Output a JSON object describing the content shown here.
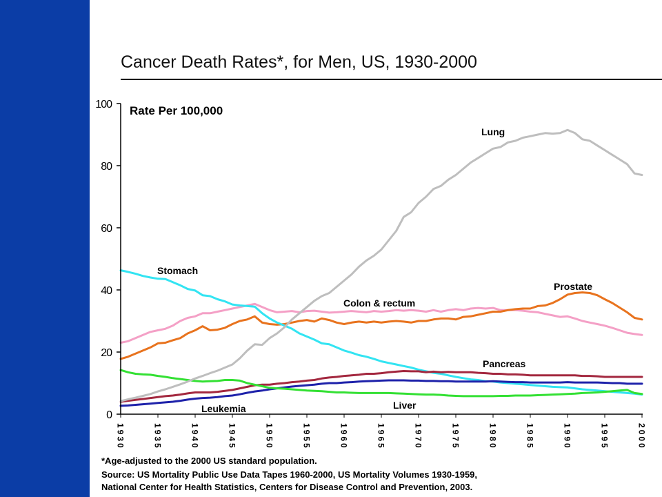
{
  "footnote": "*Age-adjusted to the 2000 US standard population.",
  "source": [
    "Source: US Mortality Public Use Data Tapes 1960-2000, US Mortality Volumes 1930-1959,",
    "National Center for Health Statistics, Centers for Disease Control and Prevention, 2003."
  ],
  "chart_data": {
    "type": "line",
    "title": "Cancer Death Rates*, for Men, US, 1930-2000",
    "xlabel": "",
    "ylabel": "Rate Per 100,000",
    "xlim": [
      1930,
      2000
    ],
    "ylim": [
      0,
      100
    ],
    "x_ticks": [
      1930,
      1935,
      1940,
      1945,
      1950,
      1955,
      1960,
      1965,
      1970,
      1975,
      1980,
      1985,
      1990,
      1995,
      2000
    ],
    "y_ticks": [
      0,
      20,
      40,
      60,
      80,
      100
    ],
    "grid": false,
    "legend": "none",
    "x": [
      1930,
      1931,
      1932,
      1933,
      1934,
      1935,
      1936,
      1937,
      1938,
      1939,
      1940,
      1941,
      1942,
      1943,
      1944,
      1945,
      1946,
      1947,
      1948,
      1949,
      1950,
      1951,
      1952,
      1953,
      1954,
      1955,
      1956,
      1957,
      1958,
      1959,
      1960,
      1961,
      1962,
      1963,
      1964,
      1965,
      1966,
      1967,
      1968,
      1969,
      1970,
      1971,
      1972,
      1973,
      1974,
      1975,
      1976,
      1977,
      1978,
      1979,
      1980,
      1981,
      1982,
      1983,
      1984,
      1985,
      1986,
      1987,
      1988,
      1989,
      1990,
      1991,
      1992,
      1993,
      1994,
      1995,
      1996,
      1997,
      1998,
      1999,
      2000
    ],
    "series": [
      {
        "name": "Colon & rectum",
        "color": "#F4A0C6",
        "values": [
          23.0,
          23.5,
          24.5,
          25.5,
          26.5,
          27.0,
          27.5,
          28.5,
          30.0,
          31.0,
          31.5,
          32.5,
          32.5,
          33.0,
          33.5,
          34.0,
          34.5,
          35.0,
          35.5,
          34.5,
          33.5,
          32.8,
          33.0,
          33.2,
          32.8,
          33.2,
          33.3,
          33.0,
          32.7,
          32.8,
          33.0,
          33.2,
          33.0,
          32.8,
          33.2,
          33.0,
          33.2,
          33.5,
          33.3,
          33.5,
          33.3,
          33.0,
          33.5,
          33.0,
          33.5,
          33.8,
          33.5,
          34.0,
          34.2,
          34.0,
          34.2,
          33.5,
          33.5,
          33.5,
          33.3,
          33.0,
          32.8,
          32.3,
          31.8,
          31.3,
          31.5,
          30.8,
          30.0,
          29.5,
          29.0,
          28.5,
          27.8,
          27.0,
          26.2,
          25.8,
          25.5
        ]
      },
      {
        "name": "Prostate",
        "color": "#E8731E",
        "values": [
          17.8,
          18.5,
          19.5,
          20.5,
          21.5,
          22.8,
          23.0,
          23.8,
          24.5,
          26.0,
          27.0,
          28.3,
          27.0,
          27.2,
          27.8,
          29.0,
          30.0,
          30.5,
          31.5,
          29.5,
          29.0,
          28.8,
          29.0,
          29.5,
          30.0,
          30.3,
          29.8,
          30.8,
          30.3,
          29.5,
          29.0,
          29.5,
          29.8,
          29.5,
          29.8,
          29.5,
          29.8,
          30.0,
          29.8,
          29.5,
          30.0,
          30.0,
          30.5,
          30.8,
          30.8,
          30.5,
          31.3,
          31.5,
          32.0,
          32.5,
          33.0,
          33.0,
          33.5,
          33.8,
          34.0,
          34.0,
          34.8,
          35.0,
          35.8,
          37.0,
          38.5,
          39.0,
          39.2,
          39.0,
          38.3,
          37.0,
          35.8,
          34.3,
          32.8,
          31.0,
          30.5
        ]
      },
      {
        "name": "Stomach",
        "color": "#33E4F2",
        "values": [
          46.3,
          45.8,
          45.2,
          44.5,
          44.0,
          43.6,
          43.5,
          42.5,
          41.5,
          40.3,
          39.8,
          38.3,
          38.0,
          37.0,
          36.3,
          35.3,
          35.0,
          34.8,
          34.6,
          32.5,
          30.8,
          29.5,
          28.5,
          27.5,
          26.0,
          25.0,
          24.0,
          22.8,
          22.5,
          21.5,
          20.5,
          19.8,
          19.0,
          18.5,
          17.8,
          17.0,
          16.5,
          16.0,
          15.5,
          15.0,
          14.3,
          13.8,
          13.3,
          13.0,
          12.5,
          12.0,
          11.6,
          11.2,
          11.0,
          10.6,
          10.5,
          10.2,
          10.0,
          9.8,
          9.6,
          9.4,
          9.2,
          9.0,
          8.8,
          8.7,
          8.6,
          8.3,
          8.0,
          7.8,
          7.6,
          7.4,
          7.2,
          7.0,
          6.8,
          6.6,
          6.3
        ]
      },
      {
        "name": "Pancreas",
        "color": "#A3283F",
        "values": [
          4.0,
          4.3,
          4.6,
          4.9,
          5.2,
          5.5,
          5.8,
          6.0,
          6.3,
          6.7,
          7.0,
          7.0,
          7.0,
          7.2,
          7.5,
          7.8,
          8.3,
          8.8,
          9.3,
          9.5,
          9.5,
          9.8,
          10.0,
          10.3,
          10.5,
          10.8,
          11.0,
          11.5,
          11.8,
          12.0,
          12.3,
          12.5,
          12.7,
          13.0,
          13.0,
          13.2,
          13.5,
          13.7,
          13.9,
          13.8,
          13.8,
          13.5,
          13.7,
          13.5,
          13.6,
          13.5,
          13.5,
          13.5,
          13.3,
          13.2,
          13.0,
          13.0,
          12.8,
          12.8,
          12.7,
          12.5,
          12.5,
          12.5,
          12.5,
          12.5,
          12.5,
          12.5,
          12.3,
          12.3,
          12.2,
          12.0,
          12.0,
          12.0,
          12.0,
          12.0,
          12.0
        ]
      },
      {
        "name": "Leukemia",
        "color": "#1E22AA",
        "values": [
          2.7,
          2.8,
          3.0,
          3.2,
          3.4,
          3.6,
          3.8,
          4.0,
          4.3,
          4.7,
          5.0,
          5.2,
          5.3,
          5.5,
          5.8,
          6.0,
          6.4,
          6.9,
          7.3,
          7.6,
          8.0,
          8.3,
          8.6,
          8.9,
          9.1,
          9.3,
          9.5,
          9.8,
          10.0,
          10.0,
          10.2,
          10.3,
          10.5,
          10.6,
          10.7,
          10.8,
          10.9,
          10.9,
          10.9,
          10.8,
          10.8,
          10.7,
          10.7,
          10.6,
          10.6,
          10.5,
          10.5,
          10.5,
          10.5,
          10.5,
          10.6,
          10.5,
          10.4,
          10.3,
          10.3,
          10.2,
          10.2,
          10.2,
          10.2,
          10.2,
          10.3,
          10.2,
          10.2,
          10.2,
          10.2,
          10.1,
          10.0,
          10.0,
          9.8,
          9.8,
          9.8
        ]
      },
      {
        "name": "Liver",
        "color": "#33E033",
        "values": [
          14.2,
          13.5,
          13.0,
          12.8,
          12.7,
          12.3,
          12.0,
          11.6,
          11.3,
          11.0,
          10.7,
          10.5,
          10.6,
          10.7,
          11.0,
          11.0,
          10.8,
          10.0,
          9.5,
          9.0,
          8.5,
          8.3,
          8.2,
          8.0,
          7.8,
          7.6,
          7.5,
          7.4,
          7.2,
          7.0,
          7.0,
          6.9,
          6.8,
          6.8,
          6.8,
          6.8,
          6.8,
          6.7,
          6.6,
          6.5,
          6.4,
          6.3,
          6.3,
          6.2,
          6.0,
          5.9,
          5.8,
          5.8,
          5.8,
          5.8,
          5.8,
          5.9,
          5.9,
          6.0,
          6.0,
          6.0,
          6.1,
          6.2,
          6.3,
          6.4,
          6.5,
          6.6,
          6.8,
          6.9,
          7.0,
          7.2,
          7.4,
          7.6,
          7.8,
          6.8,
          6.5
        ]
      },
      {
        "name": "Lung",
        "color": "#BEBEBE",
        "values": [
          4.2,
          4.8,
          5.3,
          5.9,
          6.5,
          7.3,
          8.0,
          8.8,
          9.6,
          10.5,
          11.5,
          12.3,
          13.2,
          14.0,
          15.0,
          16.0,
          18.0,
          20.5,
          22.5,
          22.3,
          24.5,
          26.0,
          28.0,
          30.5,
          32.5,
          34.5,
          36.5,
          38.0,
          39.0,
          41.0,
          43.0,
          45.0,
          47.5,
          49.5,
          51.0,
          53.0,
          56.0,
          59.0,
          63.5,
          65.0,
          68.0,
          70.0,
          72.5,
          73.5,
          75.5,
          77.0,
          79.0,
          81.0,
          82.5,
          84.0,
          85.5,
          86.0,
          87.5,
          88.0,
          89.0,
          89.5,
          90.0,
          90.5,
          90.3,
          90.5,
          91.5,
          90.5,
          88.5,
          88.0,
          86.5,
          85.0,
          83.5,
          82.0,
          80.5,
          77.5,
          77.0
        ]
      }
    ]
  }
}
